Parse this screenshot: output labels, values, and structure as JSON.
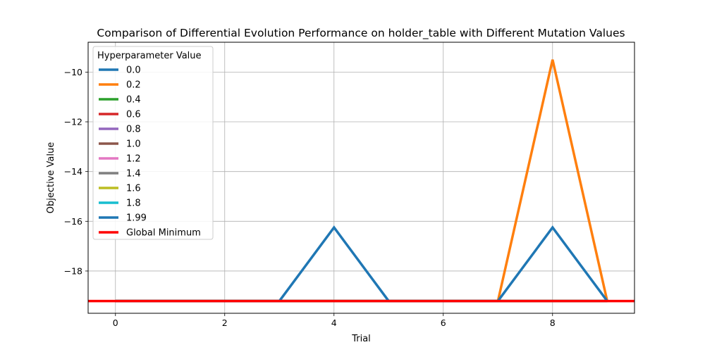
{
  "chart_data": {
    "type": "line",
    "title": "Comparison of Differential Evolution Performance on holder_table with Different Mutation Values",
    "xlabel": "Trial",
    "ylabel": "Objective Value",
    "xlim": [
      -0.5,
      9.5
    ],
    "ylim": [
      -19.7,
      -8.8
    ],
    "xticks": [
      0,
      2,
      4,
      6,
      8
    ],
    "yticks": [
      -18,
      -16,
      -14,
      -12,
      -10
    ],
    "grid": true,
    "legend": {
      "title": "Hyperparameter Value",
      "position": "upper-left"
    },
    "x": [
      0,
      1,
      2,
      3,
      4,
      5,
      6,
      7,
      8,
      9
    ],
    "series": [
      {
        "name": "0.0",
        "color": "#1f77b4",
        "values": [
          -19.2085,
          -19.2085,
          -19.2085,
          -19.2085,
          -19.2085,
          -19.2085,
          -19.2085,
          -19.2085,
          -19.2085,
          -19.2085
        ]
      },
      {
        "name": "0.2",
        "color": "#ff7f0e",
        "values": [
          -19.2085,
          -19.2085,
          -19.2085,
          -19.2085,
          -19.2085,
          -19.2085,
          -19.2085,
          -19.2085,
          -9.5,
          -19.2085
        ]
      },
      {
        "name": "0.4",
        "color": "#2ca02c",
        "values": [
          -19.2085,
          -19.2085,
          -19.2085,
          -19.2085,
          -19.2085,
          -19.2085,
          -19.2085,
          -19.2085,
          -19.2085,
          -19.2085
        ]
      },
      {
        "name": "0.6",
        "color": "#d62728",
        "values": [
          -19.2085,
          -19.2085,
          -19.2085,
          -19.2085,
          -19.2085,
          -19.2085,
          -19.2085,
          -19.2085,
          -19.2085,
          -19.2085
        ]
      },
      {
        "name": "0.8",
        "color": "#9467bd",
        "values": [
          -19.2085,
          -19.2085,
          -19.2085,
          -19.2085,
          -19.2085,
          -19.2085,
          -19.2085,
          -19.2085,
          -19.2085,
          -19.2085
        ]
      },
      {
        "name": "1.0",
        "color": "#8c564b",
        "values": [
          -19.2085,
          -19.2085,
          -19.2085,
          -19.2085,
          -19.2085,
          -19.2085,
          -19.2085,
          -19.2085,
          -19.2085,
          -19.2085
        ]
      },
      {
        "name": "1.2",
        "color": "#e377c2",
        "values": [
          -19.2085,
          -19.2085,
          -19.2085,
          -19.2085,
          -19.2085,
          -19.2085,
          -19.2085,
          -19.2085,
          -19.2085,
          -19.2085
        ]
      },
      {
        "name": "1.4",
        "color": "#7f7f7f",
        "values": [
          -19.2085,
          -19.2085,
          -19.2085,
          -19.2085,
          -19.2085,
          -19.2085,
          -19.2085,
          -19.2085,
          -19.2085,
          -19.2085
        ]
      },
      {
        "name": "1.6",
        "color": "#bcbd22",
        "values": [
          -19.2085,
          -19.2085,
          -19.2085,
          -19.2085,
          -19.2085,
          -19.2085,
          -19.2085,
          -19.2085,
          -19.2085,
          -19.2085
        ]
      },
      {
        "name": "1.8",
        "color": "#17becf",
        "values": [
          -19.2085,
          -19.2085,
          -19.2085,
          -19.2085,
          -19.2085,
          -19.2085,
          -19.2085,
          -19.2085,
          -19.2085,
          -19.2085
        ]
      },
      {
        "name": "1.99",
        "color": "#1f77b4",
        "values": [
          -19.2085,
          -19.2085,
          -19.2085,
          -19.2085,
          -16.25,
          -19.2085,
          -19.2085,
          -19.2085,
          -16.25,
          -19.2085
        ]
      }
    ],
    "reference_line": {
      "name": "Global Minimum",
      "color": "#ff0000",
      "y": -19.2085
    }
  }
}
